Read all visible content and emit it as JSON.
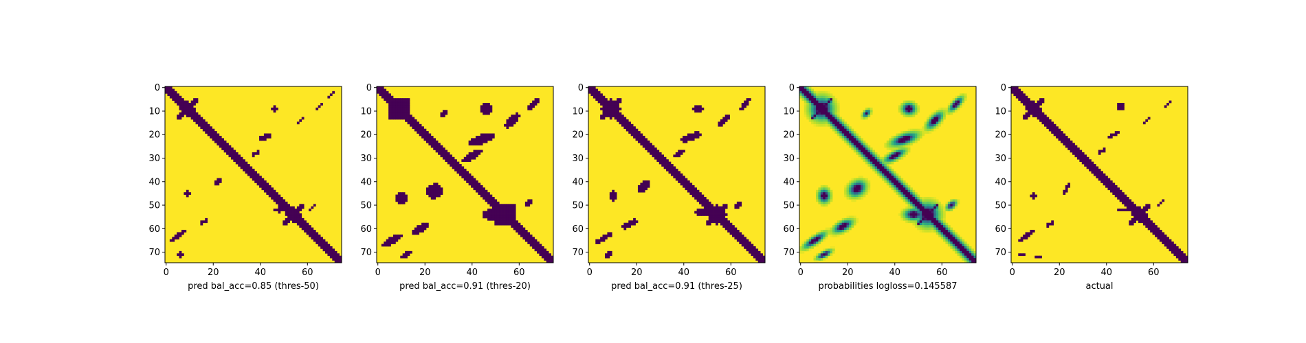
{
  "figure": {
    "colors": {
      "low": "#440154",
      "high": "#fde725",
      "mid": [
        "#35b779",
        "#21918c",
        "#7ad151",
        "#b5de2b"
      ]
    }
  },
  "chart_data": [
    {
      "type": "heatmap",
      "kind": "binary",
      "xlabel": "pred bal_acc=0.85 (thres-50)",
      "x_ticks": [
        0,
        20,
        40,
        60
      ],
      "y_ticks": [
        0,
        10,
        20,
        30,
        40,
        50,
        60,
        70
      ],
      "xlim": [
        0,
        75
      ],
      "ylim": [
        75,
        0
      ],
      "diagonal_band": 2.2,
      "anti_band": 1.2,
      "blobs": [
        [
          9,
          9,
          3,
          3,
          0
        ],
        [
          54,
          54,
          3,
          3,
          0
        ],
        [
          46,
          9,
          1.3,
          1.3,
          0
        ],
        [
          42,
          21,
          3.2,
          1.0,
          -0.4
        ],
        [
          38,
          28,
          2.2,
          0.8,
          -0.5
        ],
        [
          57,
          14,
          1.8,
          0.7,
          -0.8
        ],
        [
          65,
          8,
          2.2,
          0.7,
          -0.8
        ],
        [
          70,
          3,
          2.0,
          0.7,
          -0.8
        ],
        [
          22,
          40,
          2.5,
          0.9,
          -0.9
        ],
        [
          9,
          45,
          1.3,
          1.3,
          0
        ],
        [
          16,
          57,
          1.8,
          0.8,
          -0.5
        ],
        [
          5,
          63,
          4.0,
          1.0,
          -0.6
        ],
        [
          6,
          71,
          1.0,
          1.0,
          0
        ],
        [
          48,
          52,
          2.5,
          1.0,
          0
        ],
        [
          62,
          51,
          1.5,
          0.7,
          -0.7
        ]
      ]
    },
    {
      "type": "heatmap",
      "kind": "binary",
      "xlabel": "pred bal_acc=0.91 (thres-20)",
      "x_ticks": [
        0,
        20,
        40,
        60
      ],
      "y_ticks": [
        0,
        10,
        20,
        30,
        40,
        50,
        60,
        70
      ],
      "xlim": [
        0,
        75
      ],
      "ylim": [
        75,
        0
      ],
      "diagonal_band": 2.8,
      "anti_band": 1.7,
      "blobs": [
        [
          9,
          9,
          4.5,
          4.5,
          0
        ],
        [
          54,
          54,
          4.5,
          4.5,
          0
        ],
        [
          46,
          9,
          2.8,
          2.2,
          0
        ],
        [
          44,
          22,
          6,
          2.0,
          -0.35
        ],
        [
          40,
          29,
          4.5,
          1.5,
          -0.5
        ],
        [
          57,
          14,
          4,
          1.8,
          -0.8
        ],
        [
          66,
          7,
          3.5,
          1.3,
          -0.8
        ],
        [
          24,
          44,
          3.5,
          3.0,
          -0.5
        ],
        [
          10,
          47,
          2.2,
          2.8,
          0
        ],
        [
          18,
          60,
          4.0,
          1.8,
          -0.5
        ],
        [
          6,
          65,
          5.0,
          1.4,
          -0.6
        ],
        [
          12,
          71,
          3.0,
          1.0,
          -0.5
        ],
        [
          48,
          54,
          3.5,
          2.2,
          0
        ],
        [
          64,
          49,
          2.2,
          1.2,
          -0.7
        ],
        [
          28,
          11,
          1.5,
          1.0,
          -0.8
        ]
      ]
    },
    {
      "type": "heatmap",
      "kind": "binary",
      "xlabel": "pred bal_acc=0.91 (thres-25)",
      "x_ticks": [
        0,
        20,
        40,
        60
      ],
      "y_ticks": [
        0,
        10,
        20,
        30,
        40,
        50,
        60,
        70
      ],
      "xlim": [
        0,
        75
      ],
      "ylim": [
        75,
        0
      ],
      "diagonal_band": 2.6,
      "anti_band": 1.5,
      "blobs": [
        [
          9,
          9,
          4,
          4,
          0
        ],
        [
          54,
          54,
          4,
          4,
          0
        ],
        [
          46,
          9,
          2.0,
          1.8,
          0
        ],
        [
          43,
          21,
          4.5,
          1.5,
          -0.4
        ],
        [
          38,
          28,
          3,
          1.0,
          -0.5
        ],
        [
          57,
          14,
          3,
          1.3,
          -0.8
        ],
        [
          66,
          7,
          3.0,
          1.0,
          -0.8
        ],
        [
          23,
          42,
          3.0,
          2.0,
          -0.7
        ],
        [
          10,
          46,
          1.8,
          2.0,
          0
        ],
        [
          17,
          58,
          3.5,
          1.3,
          -0.5
        ],
        [
          6,
          64,
          4.5,
          1.2,
          -0.6
        ],
        [
          8,
          71,
          2.0,
          1.0,
          -0.5
        ],
        [
          48,
          53,
          3.0,
          1.8,
          0
        ],
        [
          63,
          50,
          1.8,
          1.0,
          -0.7
        ]
      ]
    },
    {
      "type": "heatmap",
      "kind": "probability",
      "xlabel": "probabilities logloss=0.145587",
      "x_ticks": [
        0,
        20,
        40,
        60
      ],
      "y_ticks": [
        0,
        10,
        20,
        30,
        40,
        50,
        60,
        70
      ],
      "xlim": [
        0,
        75
      ],
      "ylim": [
        75,
        0
      ],
      "diagonal_band": 3.0,
      "anti_band": 1.8,
      "blobs": [
        [
          9,
          9,
          5,
          5,
          0
        ],
        [
          54,
          54,
          5,
          5,
          0
        ],
        [
          46,
          9,
          3.0,
          2.5,
          0
        ],
        [
          44,
          22,
          6,
          2.2,
          -0.35
        ],
        [
          40,
          29,
          5,
          1.7,
          -0.5
        ],
        [
          57,
          14,
          4.5,
          2.0,
          -0.8
        ],
        [
          66,
          7,
          4.0,
          1.5,
          -0.8
        ],
        [
          24,
          43,
          4.0,
          3.0,
          -0.6
        ],
        [
          10,
          46,
          2.5,
          3.0,
          0
        ],
        [
          18,
          59,
          4.5,
          2.0,
          -0.5
        ],
        [
          6,
          65,
          5.5,
          1.6,
          -0.6
        ],
        [
          10,
          71,
          3.5,
          1.2,
          -0.5
        ],
        [
          48,
          54,
          4.0,
          2.4,
          0
        ],
        [
          64,
          50,
          2.5,
          1.4,
          -0.7
        ],
        [
          28,
          11,
          2.0,
          1.2,
          -0.8
        ]
      ]
    },
    {
      "type": "heatmap",
      "kind": "binary",
      "xlabel": "actual",
      "x_ticks": [
        0,
        20,
        40,
        60
      ],
      "y_ticks": [
        0,
        10,
        20,
        30,
        40,
        50,
        60,
        70
      ],
      "xlim": [
        0,
        75
      ],
      "ylim": [
        75,
        0
      ],
      "diagonal_band": 2.2,
      "anti_band": 1.2,
      "blobs": [
        [
          9,
          9,
          3,
          3,
          0
        ],
        [
          54,
          54,
          3,
          3,
          0
        ],
        [
          46,
          8,
          1.3,
          1.6,
          0
        ],
        [
          43,
          20,
          3.2,
          0.9,
          -0.4
        ],
        [
          38,
          27,
          2.2,
          0.7,
          -0.5
        ],
        [
          57,
          14,
          2.2,
          0.7,
          -0.8
        ],
        [
          66,
          7,
          2.2,
          0.7,
          -0.8
        ],
        [
          23,
          43,
          2.8,
          0.8,
          -0.9
        ],
        [
          9,
          46,
          1.5,
          1.3,
          0
        ],
        [
          16,
          58,
          1.8,
          0.8,
          -0.5
        ],
        [
          6,
          63,
          4.0,
          0.9,
          -0.6
        ],
        [
          4,
          71,
          1.5,
          0.8,
          0
        ],
        [
          47,
          52,
          2.5,
          0.9,
          0
        ],
        [
          63,
          49,
          2.0,
          0.6,
          -0.8
        ],
        [
          11,
          72,
          1.0,
          0.8,
          0
        ]
      ]
    }
  ]
}
